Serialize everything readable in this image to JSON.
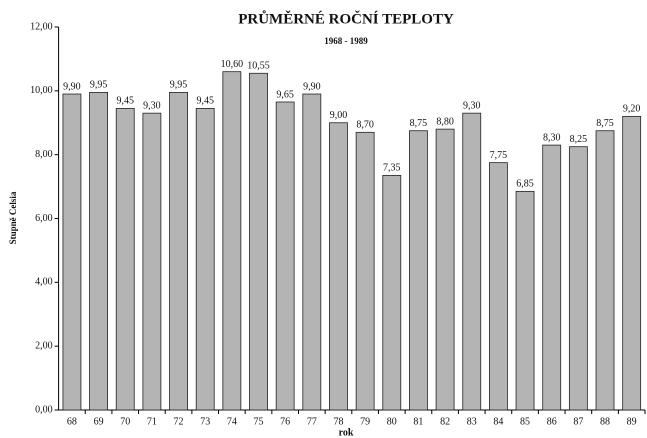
{
  "chart_data": {
    "type": "bar",
    "title": "PRŮMĚRNÉ ROČNÍ TEPLOTY",
    "subtitle": "1968 - 1989",
    "x_label": "rok",
    "y_label": "Stupně Celsia",
    "categories": [
      "68",
      "69",
      "70",
      "71",
      "72",
      "73",
      "74",
      "75",
      "76",
      "77",
      "78",
      "79",
      "80",
      "81",
      "82",
      "83",
      "84",
      "85",
      "86",
      "87",
      "88",
      "89"
    ],
    "values": [
      9.9,
      9.95,
      9.45,
      9.3,
      9.95,
      9.45,
      10.6,
      10.55,
      9.65,
      9.9,
      9.0,
      8.7,
      7.35,
      8.75,
      8.8,
      9.3,
      7.75,
      6.85,
      8.3,
      8.25,
      8.75,
      9.2
    ],
    "value_labels": [
      "9,90",
      "9,95",
      "9,45",
      "9,30",
      "9,95",
      "9,45",
      "10,60",
      "10,55",
      "9,65",
      "9,90",
      "9,00",
      "8,70",
      "7,35",
      "8,75",
      "8,80",
      "9,30",
      "7,75",
      "6,85",
      "8,30",
      "8,25",
      "8,75",
      "9,20"
    ],
    "color": "#b4b4b4",
    "ylim": [
      0,
      12
    ],
    "yticks": [
      {
        "value": 0,
        "label": "0,00"
      },
      {
        "value": 2,
        "label": "2,00"
      },
      {
        "value": 4,
        "label": "4,00"
      },
      {
        "value": 6,
        "label": "6,00"
      },
      {
        "value": 8,
        "label": "8,00"
      },
      {
        "value": 10,
        "label": "10,00"
      },
      {
        "value": 12,
        "label": "12,00"
      }
    ]
  }
}
